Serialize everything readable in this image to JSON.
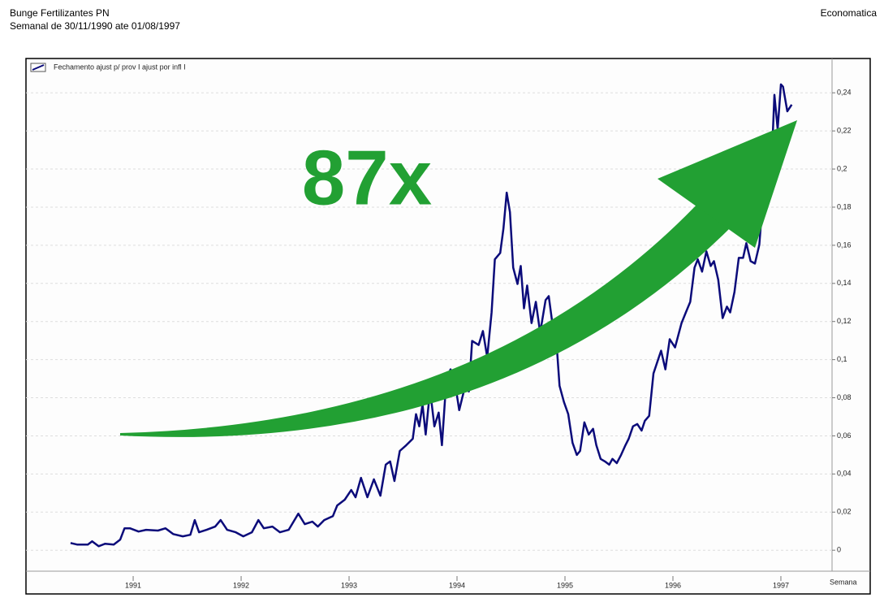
{
  "chart_data": {
    "type": "line",
    "title": "Bunge Fertilizantes PN",
    "subtitle": "Semanal de 30/11/1990 ate 01/08/1997",
    "source": "Economatica",
    "x_label": "Semana",
    "annotation": "87x",
    "grid": true,
    "xlim": [
      1990.507,
      1997.974
    ],
    "xticks": [
      {
        "value": 1991.5,
        "label": "1991"
      },
      {
        "value": 1992.5,
        "label": "1992"
      },
      {
        "value": 1993.5,
        "label": "1993"
      },
      {
        "value": 1994.5,
        "label": "1994"
      },
      {
        "value": 1995.5,
        "label": "1995"
      },
      {
        "value": 1996.5,
        "label": "1996"
      },
      {
        "value": 1997.5,
        "label": "1997"
      }
    ],
    "ylim": [
      -0.011,
      0.258
    ],
    "yticks": [
      0,
      {
        "value": 0.02,
        "label": "0,02"
      },
      {
        "value": 0.04,
        "label": "0,04"
      },
      {
        "value": 0.06,
        "label": "0,06"
      },
      {
        "value": 0.08,
        "label": "0,08"
      },
      {
        "value": 0.1,
        "label": "0,1"
      },
      {
        "value": 0.12,
        "label": "0,12"
      },
      {
        "value": 0.14,
        "label": "0,14"
      },
      {
        "value": 0.16,
        "label": "0,16"
      },
      {
        "value": 0.18,
        "label": "0,18"
      },
      {
        "value": 0.2,
        "label": "0,2"
      },
      {
        "value": 0.22,
        "label": "0,22"
      },
      {
        "value": 0.24,
        "label": "0,24"
      }
    ],
    "x": [
      1990.92,
      1990.98,
      1991.08,
      1991.12,
      1991.18,
      1991.24,
      1991.32,
      1991.38,
      1991.42,
      1991.47,
      1991.55,
      1991.62,
      1991.73,
      1991.8,
      1991.87,
      1991.96,
      1992.03,
      1992.07,
      1992.11,
      1992.18,
      1992.26,
      1992.31,
      1992.37,
      1992.45,
      1992.52,
      1992.6,
      1992.66,
      1992.71,
      1992.79,
      1992.86,
      1992.94,
      1993.03,
      1993.09,
      1993.16,
      1993.21,
      1993.27,
      1993.35,
      1993.39,
      1993.46,
      1993.52,
      1993.56,
      1993.61,
      1993.67,
      1993.73,
      1993.79,
      1993.84,
      1993.88,
      1993.92,
      1993.97,
      1994.03,
      1994.09,
      1994.12,
      1994.15,
      1994.18,
      1994.21,
      1994.25,
      1994.29,
      1994.33,
      1994.36,
      1994.4,
      1994.44,
      1994.48,
      1994.52,
      1994.57,
      1994.61,
      1994.64,
      1994.7,
      1994.74,
      1994.78,
      1994.82,
      1994.85,
      1994.9,
      1994.93,
      1994.96,
      1994.99,
      1995.02,
      1995.06,
      1995.09,
      1995.12,
      1995.15,
      1995.19,
      1995.23,
      1995.27,
      1995.32,
      1995.35,
      1995.38,
      1995.42,
      1995.45,
      1995.49,
      1995.53,
      1995.57,
      1995.61,
      1995.64,
      1995.68,
      1995.72,
      1995.76,
      1995.79,
      1995.83,
      1995.87,
      1995.91,
      1995.94,
      1995.98,
      1996.02,
      1996.06,
      1996.09,
      1996.13,
      1996.17,
      1996.21,
      1996.24,
      1996.28,
      1996.32,
      1996.37,
      1996.39,
      1996.43,
      1996.47,
      1996.52,
      1996.58,
      1996.62,
      1996.66,
      1996.7,
      1996.73,
      1996.77,
      1996.81,
      1996.85,
      1996.88,
      1996.92,
      1996.96,
      1997.0,
      1997.03,
      1997.07,
      1997.11,
      1997.15,
      1997.18,
      1997.22,
      1997.26,
      1997.3,
      1997.33,
      1997.37,
      1997.41,
      1997.44,
      1997.47,
      1997.5,
      1997.52,
      1997.56,
      1997.6
    ],
    "series": [
      {
        "name": "Fechamento  ajust p/  prov  I ajust por infl I",
        "color": "#0b0b7a",
        "values": [
          0.0038,
          0.003,
          0.003,
          0.0047,
          0.0021,
          0.0034,
          0.003,
          0.0056,
          0.0115,
          0.0115,
          0.0098,
          0.0107,
          0.0103,
          0.0115,
          0.0085,
          0.0073,
          0.0081,
          0.0158,
          0.0094,
          0.0107,
          0.0124,
          0.0158,
          0.0107,
          0.0094,
          0.0073,
          0.0094,
          0.0158,
          0.0115,
          0.0124,
          0.0094,
          0.0107,
          0.0192,
          0.0137,
          0.015,
          0.0124,
          0.0158,
          0.0179,
          0.0235,
          0.0265,
          0.0316,
          0.0278,
          0.038,
          0.0278,
          0.0372,
          0.0286,
          0.0449,
          0.0466,
          0.0363,
          0.0521,
          0.0551,
          0.0585,
          0.0714,
          0.065,
          0.0765,
          0.0607,
          0.0842,
          0.065,
          0.0722,
          0.0551,
          0.0885,
          0.0949,
          0.0885,
          0.0735,
          0.085,
          0.0833,
          0.1098,
          0.1077,
          0.115,
          0.1013,
          0.1248,
          0.1526,
          0.156,
          0.1688,
          0.1876,
          0.1774,
          0.1483,
          0.1397,
          0.1491,
          0.1269,
          0.1389,
          0.1192,
          0.1303,
          0.1141,
          0.1312,
          0.1333,
          0.1205,
          0.1098,
          0.0863,
          0.0778,
          0.0714,
          0.0564,
          0.05,
          0.0521,
          0.0671,
          0.0607,
          0.0637,
          0.0551,
          0.0479,
          0.0466,
          0.0449,
          0.0479,
          0.0457,
          0.05,
          0.0551,
          0.0585,
          0.065,
          0.0662,
          0.0628,
          0.0679,
          0.0705,
          0.0927,
          0.1013,
          0.1047,
          0.0949,
          0.1107,
          0.1064,
          0.1192,
          0.1248,
          0.1303,
          0.1483,
          0.1526,
          0.1462,
          0.1568,
          0.1491,
          0.1517,
          0.1419,
          0.1218,
          0.1278,
          0.1248,
          0.1355,
          0.1534,
          0.1534,
          0.1611,
          0.1517,
          0.1504,
          0.1603,
          0.1825,
          0.1974,
          0.1974,
          0.2389,
          0.2209,
          0.2444,
          0.2432,
          0.2303,
          0.2338
        ]
      }
    ]
  }
}
